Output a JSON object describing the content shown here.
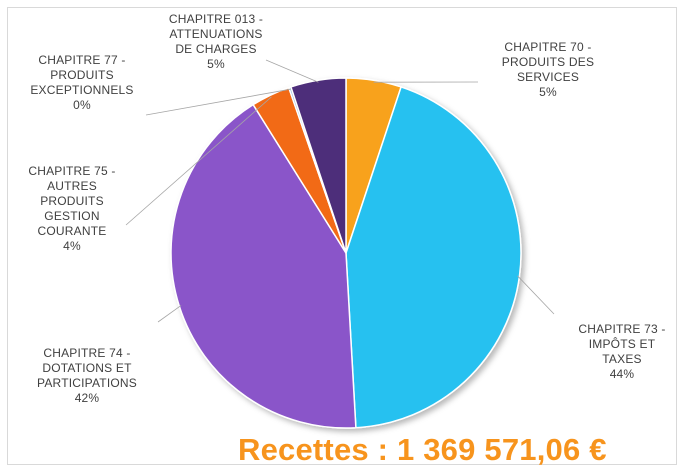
{
  "chart_data": {
    "type": "pie",
    "slices": [
      {
        "label_lines": [
          "CHAPITRE 70 -",
          "PRODUITS DES",
          "SERVICES"
        ],
        "percent_label": "5%",
        "value": 5.1,
        "color": "#f8a21c"
      },
      {
        "label_lines": [
          "CHAPITRE 73 -",
          "IMPÔTS ET",
          "TAXES"
        ],
        "percent_label": "44%",
        "value": 44.0,
        "color": "#26c1f0"
      },
      {
        "label_lines": [
          "CHAPITRE 74 -",
          "DOTATIONS ET",
          "PARTICIPATIONS"
        ],
        "percent_label": "42%",
        "value": 42.0,
        "color": "#8a55c9"
      },
      {
        "label_lines": [
          "CHAPITRE 75 -",
          "AUTRES",
          "PRODUITS",
          "GESTION",
          "COURANTE"
        ],
        "percent_label": "4%",
        "value": 3.6,
        "color": "#f26a12"
      },
      {
        "label_lines": [
          "CHAPITRE 77 -",
          "PRODUITS",
          "EXCEPTIONNELS"
        ],
        "percent_label": "0%",
        "value": 0.2,
        "color": "#8fb7dc"
      },
      {
        "label_lines": [
          "CHAPITRE 013 -",
          "ATTENUATIONS",
          "DE CHARGES"
        ],
        "percent_label": "5%",
        "value": 5.1,
        "color": "#4e2e7a"
      }
    ],
    "total_label": "Recettes : 1 369 571,06 €"
  }
}
